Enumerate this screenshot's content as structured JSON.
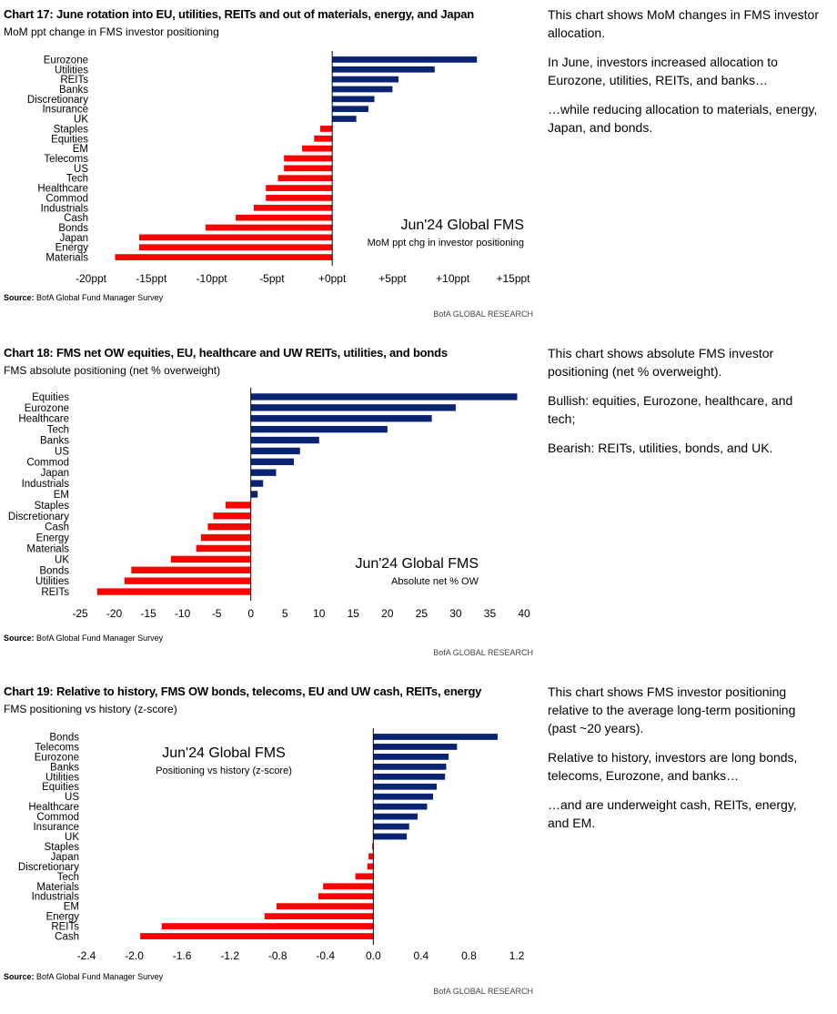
{
  "panels": [
    {
      "title": "Chart 17: June rotation into EU, utilities, REITs and out of materials, energy, and Japan",
      "subtitle": "MoM ppt change in FMS investor positioning",
      "source_label": "Source:",
      "source_text": " BofA Global Fund Manager Survey",
      "brand": "BofA GLOBAL RESEARCH",
      "commentary": [
        "This chart shows MoM changes in FMS investor allocation.",
        "In June, investors increased allocation to Eurozone, utilities, REITs, and banks…",
        "…while reducing allocation to materials, energy, Japan, and bonds."
      ]
    },
    {
      "title": "Chart 18: FMS net OW equities, EU, healthcare and UW REITs, utilities, and bonds",
      "subtitle": "FMS absolute positioning (net % overweight)",
      "source_label": "Source:",
      "source_text": " BofA Global Fund Manager Survey",
      "brand": "BofA GLOBAL RESEARCH",
      "commentary": [
        "This chart shows absolute FMS investor positioning (net % overweight).",
        "Bullish: equities, Eurozone, healthcare, and tech;",
        "Bearish: REITs, utilities, bonds, and UK."
      ]
    },
    {
      "title": "Chart 19: Relative to history, FMS OW bonds, telecoms, EU and UW cash, REITs, energy",
      "subtitle": "FMS positioning vs history (z-score)",
      "source_label": "Source:",
      "source_text": " BofA Global Fund Manager Survey",
      "brand": "BofA GLOBAL RESEARCH",
      "commentary": [
        "This chart shows FMS investor positioning relative to the average long-term positioning (past ~20 years).",
        "Relative to history, investors are long bonds, telecoms, Eurozone, and banks…",
        "…and are underweight cash, REITs, energy, and EM."
      ]
    }
  ],
  "colors": {
    "positive": "#0a2472",
    "negative": "#ff0000",
    "axis": "#000000"
  },
  "chart_data": [
    {
      "type": "bar",
      "orientation": "horizontal",
      "categories": [
        "Eurozone",
        "Utilities",
        "REITs",
        "Banks",
        "Discretionary",
        "Insurance",
        "UK",
        "Staples",
        "Equities",
        "EM",
        "Telecoms",
        "US",
        "Tech",
        "Healthcare",
        "Commod",
        "Industrials",
        "Cash",
        "Bonds",
        "Japan",
        "Energy",
        "Materials"
      ],
      "values": [
        12,
        8.5,
        5.5,
        5,
        3.5,
        3,
        2,
        -1,
        -1.5,
        -2.5,
        -4,
        -4,
        -4.5,
        -5.5,
        -5.5,
        -6.5,
        -8,
        -10.5,
        -16,
        -16,
        -18
      ],
      "xlim": [
        -20,
        15
      ],
      "xticks": [
        -20,
        -15,
        -10,
        -5,
        0,
        5,
        10,
        15
      ],
      "xtick_labels": [
        "-20ppt",
        "-15ppt",
        "-10ppt",
        "-5ppt",
        "+0ppt",
        "+5ppt",
        "+10ppt",
        "+15ppt"
      ],
      "annotation": {
        "title": "Jun'24 Global FMS",
        "subtitle": "MoM ppt chg in investor positioning"
      }
    },
    {
      "type": "bar",
      "orientation": "horizontal",
      "categories": [
        "Equities",
        "Eurozone",
        "Healthcare",
        "Tech",
        "Banks",
        "US",
        "Commod",
        "Japan",
        "Industrials",
        "EM",
        "Staples",
        "Discretionary",
        "Cash",
        "Energy",
        "Materials",
        "UK",
        "Bonds",
        "Utilities",
        "REITs"
      ],
      "values": [
        39,
        30,
        26.5,
        20,
        10,
        7.2,
        6.3,
        3.7,
        1.8,
        1,
        -3.7,
        -5.5,
        -6.3,
        -7.3,
        -8,
        -11.7,
        -17.5,
        -18.5,
        -22.5
      ],
      "xlim": [
        -25,
        40
      ],
      "xticks": [
        -25,
        -20,
        -15,
        -10,
        -5,
        0,
        5,
        10,
        15,
        20,
        25,
        30,
        35,
        40
      ],
      "xtick_labels": [
        "-25",
        "-20",
        "-15",
        "-10",
        "-5",
        "0",
        "5",
        "10",
        "15",
        "20",
        "25",
        "30",
        "35",
        "40"
      ],
      "annotation": {
        "title": "Jun'24 Global FMS",
        "subtitle": "Absolute net % OW"
      }
    },
    {
      "type": "bar",
      "orientation": "horizontal",
      "categories": [
        "Bonds",
        "Telecoms",
        "Eurozone",
        "Banks",
        "Utilities",
        "Equities",
        "US",
        "Healthcare",
        "Commod",
        "Insurance",
        "UK",
        "Staples",
        "Japan",
        "Discretionary",
        "Tech",
        "Materials",
        "Industrials",
        "EM",
        "Energy",
        "REITs",
        "Cash"
      ],
      "values": [
        1.04,
        0.7,
        0.63,
        0.61,
        0.6,
        0.53,
        0.5,
        0.45,
        0.37,
        0.3,
        0.28,
        -0.01,
        -0.04,
        -0.05,
        -0.15,
        -0.42,
        -0.46,
        -0.81,
        -0.91,
        -1.77,
        -1.95
      ],
      "xlim": [
        -2.4,
        1.2
      ],
      "xticks": [
        -2.4,
        -2.0,
        -1.6,
        -1.2,
        -0.8,
        -0.4,
        0.0,
        0.4,
        0.8,
        1.2
      ],
      "xtick_labels": [
        "-2.4",
        "-2.0",
        "-1.6",
        "-1.2",
        "-0.8",
        "-0.4",
        "0.0",
        "0.4",
        "0.8",
        "1.2"
      ],
      "annotation": {
        "title": "Jun'24 Global FMS",
        "subtitle": "Positioning vs history (z-score)"
      }
    }
  ]
}
